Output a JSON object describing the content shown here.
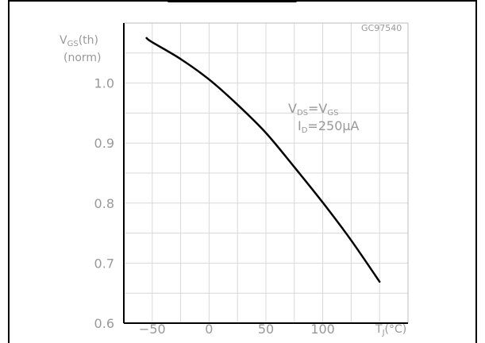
{
  "figure": {
    "code": "GC97540"
  },
  "chart_data": {
    "type": "line",
    "ylabel": {
      "line1_main": "V",
      "line1_sub": "GS",
      "line1_rest": "(th)",
      "line2": "(norm)"
    },
    "xlabel": {
      "main": "T",
      "sub": "J",
      "rest": "(°C)"
    },
    "xlim": [
      -75,
      175
    ],
    "ylim": [
      0.6,
      1.1
    ],
    "xticks": [
      -50,
      0,
      50,
      100
    ],
    "xtick_labels": [
      "−50",
      "0",
      "50",
      "100"
    ],
    "yticks": [
      0.6,
      0.7,
      0.8,
      0.9,
      1.0
    ],
    "ytick_labels": [
      "0.6",
      "0.7",
      "0.8",
      "0.9",
      "1.0"
    ],
    "grid": true,
    "series": [
      {
        "x": [
          -55,
          -50,
          -25,
          0,
          25,
          50,
          75,
          100,
          125,
          150
        ],
        "values": [
          1.075,
          1.068,
          1.04,
          1.006,
          0.964,
          0.917,
          0.86,
          0.801,
          0.738,
          0.669
        ]
      }
    ],
    "annotations": {
      "line1": {
        "v1_main": "V",
        "v1_sub": "DS",
        "eq": "=",
        "v2_main": "V",
        "v2_sub": "GS"
      },
      "line2": {
        "main": "I",
        "sub": "D",
        "rest": "=250μA"
      }
    }
  }
}
